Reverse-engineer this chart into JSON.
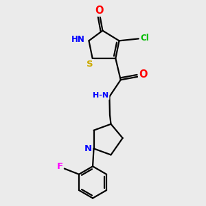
{
  "bg_color": "#ebebeb",
  "bond_color": "#000000",
  "bond_width": 1.6,
  "atom_colors": {
    "O": "#ff0000",
    "N": "#0000ff",
    "S": "#ccaa00",
    "Cl": "#00bb00",
    "F": "#ff00ff",
    "C": "#000000",
    "H": "#777777"
  },
  "font_size": 8.5,
  "fig_size": [
    3.0,
    3.0
  ],
  "dpi": 100
}
